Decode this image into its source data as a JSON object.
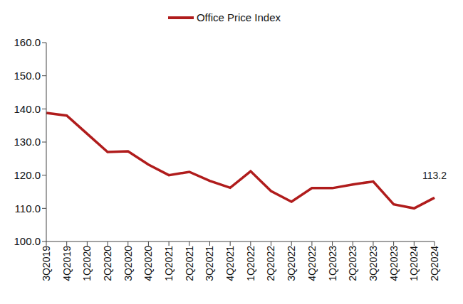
{
  "chart_data": {
    "type": "line",
    "categories": [
      "3Q2019",
      "4Q2019",
      "1Q2020",
      "2Q2020",
      "3Q2020",
      "4Q2020",
      "1Q2021",
      "2Q2021",
      "3Q2021",
      "4Q2021",
      "1Q2022",
      "2Q2022",
      "3Q2022",
      "4Q2022",
      "1Q2023",
      "2Q2023",
      "3Q2023",
      "4Q2023",
      "1Q2024",
      "2Q2024"
    ],
    "series": [
      {
        "name": "Office Price Index",
        "color": "#b01c1c",
        "values": [
          138.8,
          138.0,
          132.5,
          127.0,
          127.2,
          123.2,
          120.0,
          121.0,
          118.3,
          116.2,
          121.2,
          115.2,
          112.0,
          116.1,
          116.1,
          117.2,
          118.1,
          111.2,
          110.0,
          113.2
        ]
      }
    ],
    "ylim": [
      100,
      160
    ],
    "yticks": [
      {
        "value": 100,
        "label": "100.0"
      },
      {
        "value": 110,
        "label": "110.0"
      },
      {
        "value": 120,
        "label": "120.0"
      },
      {
        "value": 130,
        "label": "130.0"
      },
      {
        "value": 140,
        "label": "140.0"
      },
      {
        "value": 150,
        "label": "150.0"
      },
      {
        "value": 160,
        "label": "160.0"
      }
    ],
    "grid": false,
    "legend": "top",
    "annotations": [
      {
        "category": "2Q2024",
        "text": "113.2"
      }
    ]
  }
}
